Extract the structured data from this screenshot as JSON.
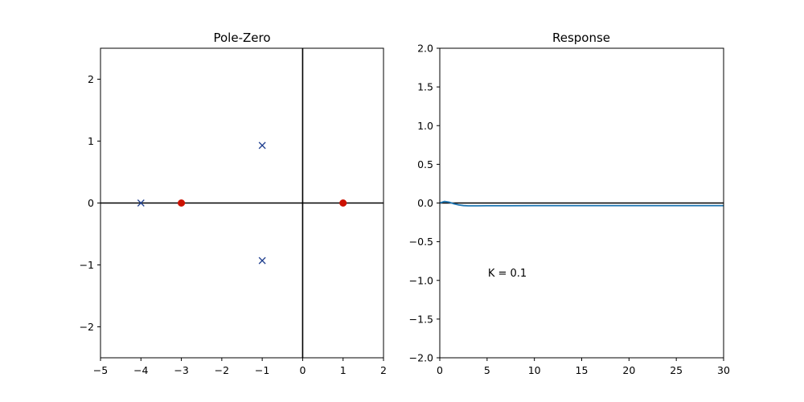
{
  "chart_data": [
    {
      "type": "scatter",
      "title": "Pole-Zero",
      "xlabel": "",
      "ylabel": "",
      "xlim": [
        -5,
        2
      ],
      "ylim": [
        -2.5,
        2.5
      ],
      "xticks": [
        -5,
        -4,
        -3,
        -2,
        -1,
        0,
        1,
        2
      ],
      "xtick_labels": [
        "−5",
        "−4",
        "−3",
        "−2",
        "−1",
        "0",
        "1",
        "2"
      ],
      "yticks": [
        -2,
        -1,
        0,
        1,
        2
      ],
      "ytick_labels": [
        "−2",
        "−1",
        "0",
        "1",
        "2"
      ],
      "grid": false,
      "reference_lines": [
        "x = 0",
        "y = 0"
      ],
      "series": [
        {
          "marker": "x",
          "color": "#1f3f8f",
          "points": [
            [
              -4,
              0
            ],
            [
              -1,
              0.93
            ],
            [
              -1,
              -0.93
            ]
          ]
        },
        {
          "marker": "o",
          "color": "#cc1100",
          "points": [
            [
              -3,
              0
            ],
            [
              1,
              0
            ]
          ]
        }
      ]
    },
    {
      "type": "line",
      "title": "Response",
      "xlabel": "",
      "ylabel": "",
      "xlim": [
        0,
        30
      ],
      "ylim": [
        -2.0,
        2.0
      ],
      "xticks": [
        0,
        5,
        10,
        15,
        20,
        25,
        30
      ],
      "xtick_labels": [
        "0",
        "5",
        "10",
        "15",
        "20",
        "25",
        "30"
      ],
      "yticks": [
        -2.0,
        -1.5,
        -1.0,
        -0.5,
        0.0,
        0.5,
        1.0,
        1.5,
        2.0
      ],
      "ytick_labels": [
        "−2.0",
        "−1.5",
        "−1.0",
        "−0.5",
        "0.0",
        "0.5",
        "1.0",
        "1.5",
        "2.0"
      ],
      "grid": false,
      "reference_lines": [
        "y = 0"
      ],
      "series": [
        {
          "color": "#1f77b4",
          "x": [
            0,
            0.5,
            1,
            1.5,
            2,
            2.5,
            3,
            4,
            5,
            7,
            10,
            15,
            20,
            25,
            30
          ],
          "y": [
            0.0,
            0.02,
            0.01,
            -0.01,
            -0.025,
            -0.033,
            -0.036,
            -0.036,
            -0.035,
            -0.035,
            -0.034,
            -0.034,
            -0.034,
            -0.034,
            -0.034
          ]
        }
      ],
      "annotations": [
        {
          "text": "K = 0.1",
          "x": 5,
          "y": -0.95
        }
      ]
    }
  ]
}
